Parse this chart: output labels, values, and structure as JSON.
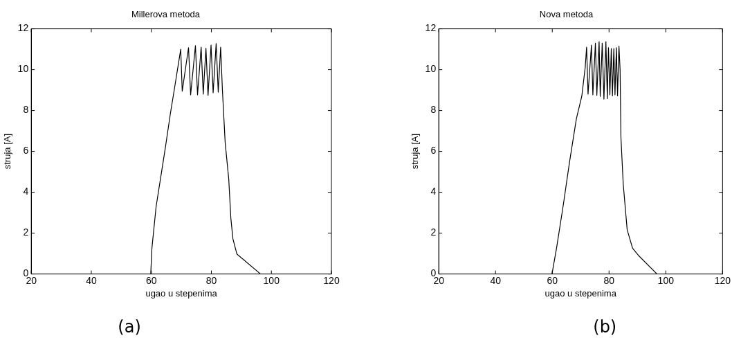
{
  "chart_data": [
    {
      "type": "line",
      "title": "Millerova metoda",
      "xlabel": "ugao u stepenima",
      "ylabel": "struja [A]",
      "annotations": [
        "(a)"
      ],
      "xlim": [
        20,
        120
      ],
      "xticks": [
        20,
        40,
        60,
        80,
        100,
        120
      ],
      "ylim": [
        0,
        12
      ],
      "yticks": [
        0,
        2,
        4,
        6,
        8,
        10,
        12
      ],
      "grid": false,
      "legend": false,
      "series": [
        {
          "color": "#000000",
          "x": [
            59.8,
            60.2,
            61.6,
            64.7,
            66.3,
            67.9,
            69.8,
            70.3,
            72.4,
            73.1,
            74.7,
            75.4,
            76.6,
            77.3,
            78.2,
            78.9,
            79.9,
            80.6,
            81.6,
            82.3,
            83.1,
            83.7,
            84.6,
            85.8,
            86.5,
            87.2,
            88.5,
            96.4
          ],
          "values": [
            0,
            1.26,
            3.3,
            6.2,
            7.8,
            9.25,
            11.0,
            8.95,
            11.08,
            8.77,
            11.18,
            8.77,
            11.1,
            8.8,
            11.05,
            8.74,
            11.2,
            8.87,
            11.28,
            8.9,
            11.1,
            8.97,
            6.44,
            4.64,
            2.73,
            1.71,
            0.98,
            0
          ]
        }
      ]
    },
    {
      "type": "line",
      "title": "Nova metoda",
      "xlabel": "ugao u stepenima",
      "ylabel": "struja [A]",
      "annotations": [
        "(b)"
      ],
      "xlim": [
        20,
        120
      ],
      "xticks": [
        20,
        40,
        60,
        80,
        100,
        120
      ],
      "ylim": [
        0,
        12
      ],
      "yticks": [
        0,
        2,
        4,
        6,
        8,
        10,
        12
      ],
      "grid": false,
      "legend": false,
      "series": [
        {
          "color": "#000000",
          "x": [
            59.9,
            61.5,
            63.8,
            66.1,
            68.5,
            70.4,
            71.6,
            72.1,
            72.6,
            73.8,
            74.3,
            75.2,
            75.7,
            76.5,
            76.9,
            77.6,
            78.2,
            78.9,
            79.4,
            79.8,
            80.3,
            80.8,
            81.2,
            81.7,
            82.1,
            82.6,
            83.0,
            83.5,
            83.9,
            84.2,
            85.0,
            86.4,
            88.3,
            90.3,
            96.9
          ],
          "values": [
            0,
            1.26,
            3.3,
            5.5,
            7.6,
            8.7,
            10.1,
            11.1,
            8.8,
            11.2,
            8.77,
            11.3,
            8.74,
            11.37,
            8.69,
            11.3,
            8.56,
            11.37,
            8.58,
            11.08,
            8.77,
            11.03,
            8.72,
            11.03,
            8.77,
            11.08,
            8.72,
            11.15,
            10.0,
            6.67,
            4.41,
            2.16,
            1.26,
            0.92,
            0
          ]
        }
      ]
    }
  ]
}
